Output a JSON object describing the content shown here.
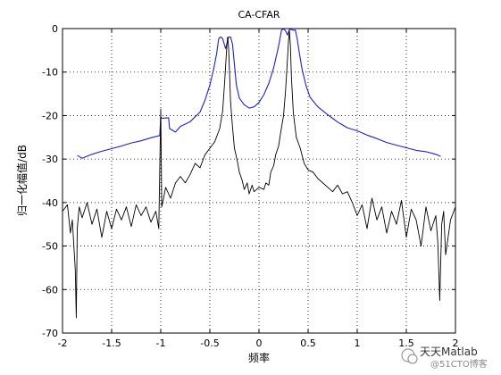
{
  "chart_data": {
    "type": "line",
    "title": "CA-CFAR",
    "xlabel": "频率",
    "ylabel": "归一化幅值/dB",
    "xlim": [
      -2,
      2
    ],
    "ylim": [
      -70,
      0
    ],
    "xticks": [
      -2,
      -1.5,
      -1,
      -0.5,
      0,
      0.5,
      1,
      1.5,
      2
    ],
    "yticks": [
      0,
      -10,
      -20,
      -30,
      -40,
      -50,
      -60,
      -70
    ],
    "xtick_labels": [
      "-2",
      "-1.5",
      "-1",
      "-0.5",
      "0",
      "0.5",
      "1",
      "1.5",
      "2"
    ],
    "ytick_labels": [
      "0",
      "-10",
      "-20",
      "-30",
      "-40",
      "-50",
      "-60",
      "-70"
    ],
    "grid": "dotted",
    "series": [
      {
        "color": "#1f1fd0",
        "x": [
          -1.85,
          -1.8,
          -1.7,
          -1.6,
          -1.5,
          -1.4,
          -1.3,
          -1.2,
          -1.1,
          -1.01,
          -1.0,
          -0.99,
          -0.92,
          -0.91,
          -0.85,
          -0.8,
          -0.7,
          -0.6,
          -0.55,
          -0.5,
          -0.46,
          -0.43,
          -0.41,
          -0.39,
          -0.37,
          -0.34,
          -0.31,
          -0.29,
          -0.27,
          -0.25,
          -0.23,
          -0.2,
          -0.15,
          -0.1,
          -0.05,
          0.0,
          0.05,
          0.1,
          0.15,
          0.2,
          0.23,
          0.25,
          0.27,
          0.29,
          0.31,
          0.33,
          0.35,
          0.37,
          0.39,
          0.41,
          0.44,
          0.48,
          0.52,
          0.6,
          0.7,
          0.8,
          0.9,
          1.0,
          1.1,
          1.2,
          1.3,
          1.4,
          1.5,
          1.6,
          1.7,
          1.8,
          1.85
        ],
        "y": [
          -29.2,
          -29.8,
          -28.9,
          -28.2,
          -27.6,
          -27.0,
          -26.3,
          -25.8,
          -25.1,
          -24.6,
          -20.3,
          -20.6,
          -20.5,
          -23.0,
          -23.8,
          -22.5,
          -21.4,
          -19.2,
          -16.5,
          -13.0,
          -9.2,
          -5.6,
          -2.3,
          -1.9,
          -2.3,
          -4.6,
          -2.0,
          -1.9,
          -3.5,
          -8.2,
          -13.0,
          -16.0,
          -17.5,
          -18.3,
          -18.0,
          -17.0,
          -15.2,
          -12.6,
          -9.0,
          -4.0,
          -0.3,
          -0.1,
          -0.5,
          -1.5,
          -0.2,
          -0.2,
          -0.4,
          -0.3,
          -2.5,
          -5.5,
          -9.5,
          -13.2,
          -15.8,
          -18.0,
          -19.8,
          -21.5,
          -22.8,
          -23.5,
          -24.5,
          -25.3,
          -26.2,
          -26.8,
          -27.4,
          -28.0,
          -28.3,
          -28.9,
          -29.4
        ]
      },
      {
        "color": "#000000",
        "x": [
          -2.0,
          -1.95,
          -1.92,
          -1.9,
          -1.87,
          -1.86,
          -1.85,
          -1.83,
          -1.8,
          -1.75,
          -1.7,
          -1.65,
          -1.6,
          -1.55,
          -1.5,
          -1.45,
          -1.4,
          -1.35,
          -1.3,
          -1.25,
          -1.2,
          -1.15,
          -1.1,
          -1.05,
          -1.02,
          -1.0,
          -0.99,
          -0.98,
          -0.95,
          -0.9,
          -0.85,
          -0.8,
          -0.75,
          -0.7,
          -0.65,
          -0.6,
          -0.55,
          -0.5,
          -0.45,
          -0.4,
          -0.37,
          -0.35,
          -0.33,
          -0.32,
          -0.31,
          -0.3,
          -0.29,
          -0.27,
          -0.25,
          -0.22,
          -0.2,
          -0.17,
          -0.15,
          -0.12,
          -0.1,
          -0.07,
          -0.05,
          0.0,
          0.05,
          0.07,
          0.1,
          0.12,
          0.15,
          0.17,
          0.2,
          0.22,
          0.25,
          0.27,
          0.29,
          0.3,
          0.31,
          0.32,
          0.33,
          0.35,
          0.38,
          0.42,
          0.46,
          0.5,
          0.55,
          0.6,
          0.65,
          0.7,
          0.75,
          0.8,
          0.85,
          0.9,
          0.95,
          1.0,
          1.05,
          1.1,
          1.15,
          1.2,
          1.25,
          1.3,
          1.35,
          1.4,
          1.45,
          1.5,
          1.55,
          1.6,
          1.65,
          1.7,
          1.75,
          1.8,
          1.82,
          1.83,
          1.84,
          1.86,
          1.88,
          1.9,
          1.95,
          2.0
        ],
        "y": [
          -42.0,
          -40.5,
          -47.0,
          -44.0,
          -55.5,
          -66.5,
          -46.0,
          -41.0,
          -43.5,
          -40.0,
          -45.0,
          -41.5,
          -48.0,
          -42.0,
          -46.0,
          -41.5,
          -44.0,
          -41.0,
          -45.5,
          -40.5,
          -43.0,
          -41.0,
          -44.5,
          -42.0,
          -46.0,
          -18.5,
          -41.0,
          -40.0,
          -36.5,
          -39.0,
          -35.5,
          -34.0,
          -35.5,
          -33.5,
          -31.0,
          -32.0,
          -29.0,
          -27.5,
          -26.0,
          -23.0,
          -19.0,
          -12.5,
          -5.0,
          -2.0,
          -4.0,
          -10.0,
          -16.5,
          -22.5,
          -27.5,
          -30.5,
          -33.0,
          -35.0,
          -37.0,
          -35.5,
          -38.0,
          -36.0,
          -37.5,
          -36.5,
          -37.0,
          -35.5,
          -36.0,
          -33.0,
          -31.5,
          -29.0,
          -27.0,
          -24.0,
          -20.0,
          -14.5,
          -7.0,
          -3.0,
          -0.5,
          -4.0,
          -11.0,
          -19.5,
          -25.0,
          -27.5,
          -31.0,
          -32.5,
          -33.0,
          -34.5,
          -35.5,
          -36.5,
          -37.5,
          -36.0,
          -38.0,
          -37.5,
          -40.0,
          -43.0,
          -40.5,
          -46.0,
          -39.0,
          -44.0,
          -41.0,
          -47.0,
          -42.0,
          -45.0,
          -39.5,
          -48.0,
          -41.5,
          -44.0,
          -50.0,
          -41.0,
          -46.5,
          -43.0,
          -49.0,
          -55.5,
          -62.5,
          -45.0,
          -42.0,
          -52.0,
          -44.0,
          -41.0
        ]
      }
    ]
  },
  "watermark": {
    "name": "天天Matlab",
    "subtext": "@51CTO博客"
  }
}
